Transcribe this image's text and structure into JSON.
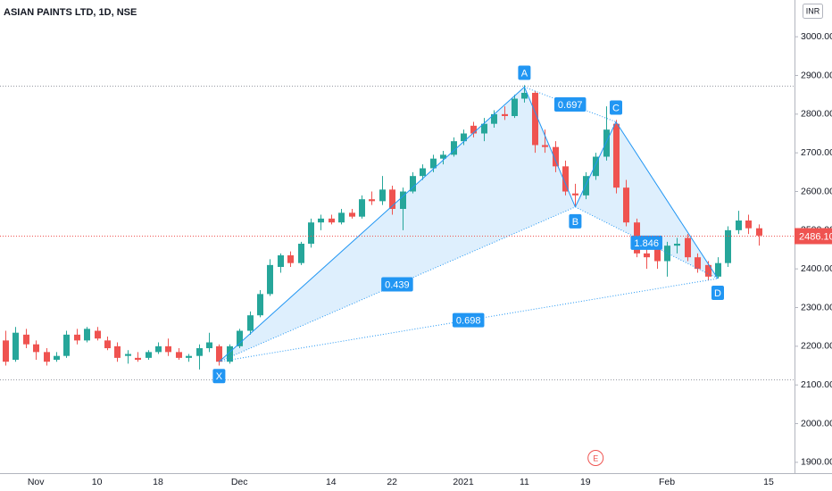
{
  "chart_data": {
    "type": "candlestick",
    "title": "ASIAN PAINTS LTD, 1D, NSE",
    "currency": "INR",
    "categories": [
      null,
      null,
      null,
      "Nov",
      null,
      null,
      null,
      null,
      null,
      "10",
      null,
      null,
      null,
      null,
      null,
      "18",
      null,
      null,
      null,
      null,
      null,
      null,
      null,
      "Dec",
      null,
      null,
      null,
      null,
      null,
      null,
      null,
      null,
      "14",
      null,
      null,
      null,
      null,
      null,
      "22",
      null,
      null,
      null,
      null,
      null,
      null,
      "2021",
      null,
      null,
      null,
      null,
      null,
      "11",
      null,
      null,
      null,
      null,
      null,
      "19",
      null,
      null,
      null,
      null,
      null,
      null,
      null,
      "Feb",
      null,
      null,
      null,
      null,
      null,
      null,
      null,
      null,
      null,
      "15"
    ],
    "open": [
      2215,
      2165,
      2230,
      2205,
      2185,
      2165,
      2175,
      2230,
      2215,
      2240,
      2215,
      2200,
      2175,
      2170,
      2170,
      2185,
      2200,
      2185,
      2170,
      2175,
      2195,
      2200,
      2160,
      2200,
      2240,
      2280,
      2335,
      2405,
      2435,
      2415,
      2465,
      2520,
      2530,
      2520,
      2545,
      2535,
      2580,
      2575,
      2605,
      2555,
      2600,
      2640,
      2660,
      2685,
      2695,
      2730,
      2770,
      2750,
      2775,
      2800,
      2795,
      2840,
      2855,
      2720,
      2715,
      2665,
      2595,
      2590,
      2640,
      2690,
      2775,
      2610,
      2520,
      2440,
      2460,
      2420,
      2460,
      2480,
      2430,
      2410,
      2380,
      2415,
      2500,
      2525,
      2505,
      null
    ],
    "high": [
      2240,
      2250,
      2245,
      2215,
      2195,
      2185,
      2240,
      2245,
      2250,
      2250,
      2225,
      2210,
      2190,
      2185,
      2190,
      2210,
      2220,
      2195,
      2180,
      2205,
      2235,
      2205,
      2205,
      2245,
      2290,
      2345,
      2425,
      2440,
      2445,
      2470,
      2530,
      2540,
      2540,
      2555,
      2555,
      2590,
      2600,
      2640,
      2615,
      2610,
      2650,
      2670,
      2695,
      2705,
      2740,
      2760,
      2780,
      2790,
      2810,
      2820,
      2850,
      2875,
      2860,
      2760,
      2730,
      2680,
      2620,
      2650,
      2700,
      2820,
      2785,
      2630,
      2530,
      2460,
      2475,
      2470,
      2480,
      2490,
      2440,
      2420,
      2430,
      2510,
      2550,
      2540,
      2515,
      null
    ],
    "low": [
      2150,
      2160,
      2195,
      2165,
      2150,
      2160,
      2170,
      2205,
      2210,
      2215,
      2190,
      2160,
      2155,
      2160,
      2165,
      2180,
      2175,
      2165,
      2160,
      2140,
      2185,
      2150,
      2155,
      2195,
      2230,
      2275,
      2330,
      2390,
      2405,
      2410,
      2455,
      2500,
      2515,
      2515,
      2530,
      2530,
      2565,
      2565,
      2540,
      2500,
      2595,
      2630,
      2650,
      2670,
      2690,
      2720,
      2740,
      2730,
      2765,
      2785,
      2790,
      2830,
      2700,
      2700,
      2650,
      2590,
      2560,
      2580,
      2630,
      2680,
      2595,
      2510,
      2430,
      2400,
      2400,
      2380,
      2440,
      2420,
      2390,
      2370,
      2375,
      2405,
      2490,
      2490,
      2460,
      null
    ],
    "close": [
      2160,
      2235,
      2205,
      2185,
      2160,
      2175,
      2230,
      2215,
      2245,
      2220,
      2195,
      2170,
      2180,
      2165,
      2185,
      2200,
      2185,
      2170,
      2175,
      2195,
      2210,
      2160,
      2200,
      2240,
      2280,
      2335,
      2410,
      2435,
      2415,
      2465,
      2520,
      2530,
      2520,
      2545,
      2535,
      2580,
      2575,
      2605,
      2555,
      2600,
      2640,
      2660,
      2685,
      2695,
      2730,
      2750,
      2750,
      2775,
      2800,
      2795,
      2840,
      2855,
      2720,
      2715,
      2665,
      2600,
      2590,
      2640,
      2690,
      2760,
      2610,
      2520,
      2440,
      2430,
      2420,
      2460,
      2465,
      2430,
      2400,
      2380,
      2415,
      2500,
      2525,
      2505,
      2486.1,
      null
    ],
    "up_color": "#26a69a",
    "down_color": "#ef5350",
    "ylim": [
      1872,
      3095
    ],
    "yticks": [
      {
        "value": 1900,
        "label": "1900.00"
      },
      {
        "value": 2000,
        "label": "2000.00"
      },
      {
        "value": 2100,
        "label": "2100.00"
      },
      {
        "value": 2200,
        "label": "2200.00"
      },
      {
        "value": 2300,
        "label": "2300.00"
      },
      {
        "value": 2400,
        "label": "2400.00"
      },
      {
        "value": 2500,
        "label": "2500.00"
      },
      {
        "value": 2600,
        "label": "2600.00"
      },
      {
        "value": 2700,
        "label": "2700.00"
      },
      {
        "value": 2800,
        "label": "2800.00"
      },
      {
        "value": 2900,
        "label": "2900.00"
      },
      {
        "value": 3000,
        "label": "3000.00"
      }
    ],
    "grid": false,
    "last_price": {
      "value": 2486.1,
      "label": "2486.10",
      "color": "#ef5350"
    },
    "hlines": [
      2873,
      2114
    ],
    "pattern": {
      "color": "#2196f3",
      "points": [
        {
          "label": "X",
          "index": 21,
          "price": 2160,
          "position": "below"
        },
        {
          "label": "A",
          "index": 51,
          "price": 2870,
          "position": "above"
        },
        {
          "label": "B",
          "index": 56,
          "price": 2560,
          "position": "below"
        },
        {
          "label": "C",
          "index": 60,
          "price": 2780,
          "position": "above"
        },
        {
          "label": "D",
          "index": 70,
          "price": 2375,
          "position": "below"
        }
      ],
      "ratios": [
        {
          "points": [
            "X",
            "B"
          ],
          "ratio": 0.439
        },
        {
          "points": [
            "A",
            "C"
          ],
          "ratio": 0.697
        },
        {
          "points": [
            "X",
            "D"
          ],
          "ratio": 0.698
        },
        {
          "points": [
            "B",
            "D"
          ],
          "ratio": 1.846
        }
      ]
    },
    "earnings_marker": {
      "index": 58,
      "label": "E"
    }
  }
}
